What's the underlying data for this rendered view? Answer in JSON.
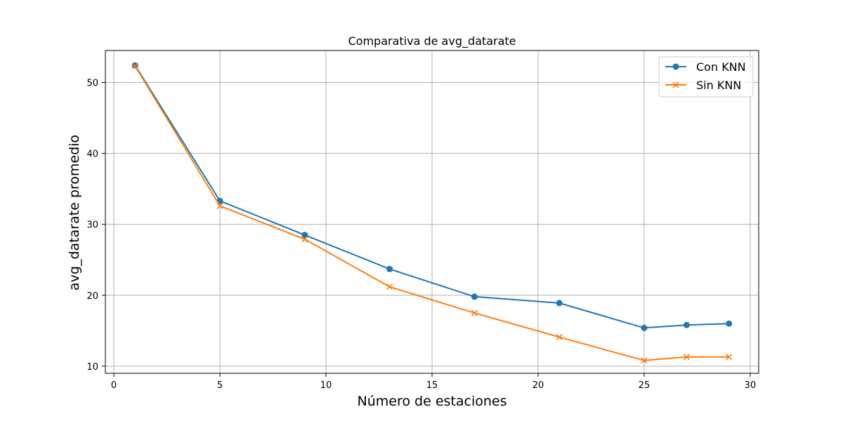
{
  "chart_data": {
    "type": "line",
    "title": "Comparativa de avg_datarate",
    "xlabel": "Número de estaciones",
    "ylabel": "avg_datarate promedio",
    "xlim": [
      -0.4,
      30.4
    ],
    "ylim": [
      9,
      54.5
    ],
    "xticks": [
      0,
      5,
      10,
      15,
      20,
      25,
      30
    ],
    "yticks": [
      10,
      20,
      30,
      40,
      50
    ],
    "grid": true,
    "legend_position": "top-right",
    "x": [
      1,
      5,
      9,
      13,
      17,
      21,
      25,
      27,
      29
    ],
    "series": [
      {
        "name": "Con KNN",
        "color": "#1f77b4",
        "marker": "circle",
        "values": [
          52.4,
          33.3,
          28.5,
          23.7,
          19.8,
          18.9,
          15.4,
          15.8,
          16.0
        ]
      },
      {
        "name": "Sin KNN",
        "color": "#ff7f0e",
        "marker": "x",
        "values": [
          52.3,
          32.6,
          27.9,
          21.2,
          17.5,
          14.1,
          10.8,
          11.3,
          11.3
        ]
      }
    ]
  }
}
